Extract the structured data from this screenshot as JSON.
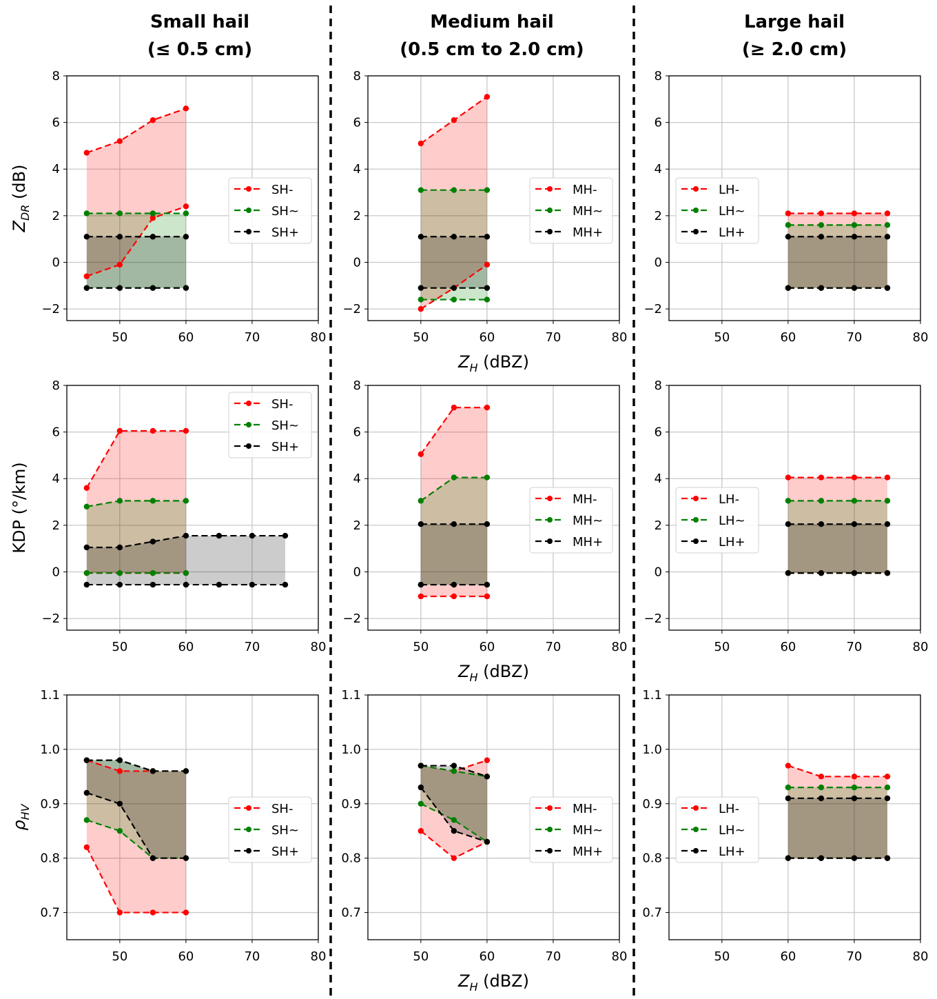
{
  "column_titles": [
    {
      "line1": "Small hail",
      "line2": "(≤ 0.5 cm)"
    },
    {
      "line1": "Medium hail",
      "line2": "(0.5 cm to 2.0 cm)"
    },
    {
      "line1": "Large hail",
      "line2": "(≥ 2.0 cm)"
    }
  ],
  "colors": {
    "minus": "#ff0000",
    "tilde": "#008000",
    "plus": "#000000",
    "fill_minus": "rgba(255,0,0,0.2)",
    "fill_tilde": "rgba(0,128,0,0.2)",
    "fill_plus": "rgba(0,0,0,0.2)"
  },
  "chart_data": {
    "type": "line",
    "grid": true,
    "xlim": [
      42,
      80
    ],
    "xticks": [
      50,
      60,
      70,
      80
    ],
    "xlabel": {
      "main": "Z",
      "sub": "H",
      "unit": " (dBZ)"
    },
    "rows": [
      {
        "ylabel": {
          "main": "Z",
          "sub": "DR",
          "unit": " (dB)"
        },
        "ylim": [
          -2.5,
          8
        ],
        "yticks": [
          -2,
          0,
          2,
          4,
          6,
          8
        ],
        "ytick_labels": [
          "−2",
          "0",
          "2",
          "4",
          "6",
          "8"
        ]
      },
      {
        "ylabel": {
          "main": "KDP (°/km)",
          "sub": "",
          "unit": ""
        },
        "ylim": [
          -2.5,
          8
        ],
        "yticks": [
          -2,
          0,
          2,
          4,
          6,
          8
        ],
        "ytick_labels": [
          "−2",
          "0",
          "2",
          "4",
          "6",
          "8"
        ]
      },
      {
        "ylabel": {
          "main": "ρ",
          "sub": "HV",
          "unit": ""
        },
        "ylim": [
          0.65,
          1.1
        ],
        "yticks": [
          0.7,
          0.8,
          0.9,
          1.0,
          1.1
        ],
        "ytick_labels": [
          "0.7",
          "0.8",
          "0.9",
          "1.0",
          "1.1"
        ]
      }
    ],
    "panels": [
      {
        "row": 0,
        "col": 0,
        "legend": "center-right",
        "series": [
          {
            "name": "SH-",
            "key": "minus",
            "x": [
              45,
              50,
              55,
              60
            ],
            "upper": [
              4.7,
              5.2,
              6.1,
              6.6
            ],
            "lower": [
              -0.6,
              -0.1,
              1.9,
              2.4
            ]
          },
          {
            "name": "SH~",
            "key": "tilde",
            "x": [
              45,
              50,
              55,
              60
            ],
            "upper": [
              2.1,
              2.1,
              2.1,
              2.1
            ],
            "lower": [
              -1.1,
              -1.1,
              -1.1,
              -1.1
            ]
          },
          {
            "name": "SH+",
            "key": "plus",
            "x": [
              45,
              50,
              55,
              60
            ],
            "upper": [
              1.1,
              1.1,
              1.1,
              1.1
            ],
            "lower": [
              -1.1,
              -1.1,
              -1.1,
              -1.1
            ]
          }
        ]
      },
      {
        "row": 0,
        "col": 1,
        "legend": "center-right",
        "series": [
          {
            "name": "MH-",
            "key": "minus",
            "x": [
              50,
              55,
              60
            ],
            "upper": [
              5.1,
              6.1,
              7.1
            ],
            "lower": [
              -2.0,
              -1.1,
              -0.1
            ]
          },
          {
            "name": "MH~",
            "key": "tilde",
            "x": [
              50,
              55,
              60
            ],
            "upper": [
              3.1,
              3.1,
              3.1
            ],
            "lower": [
              -1.6,
              -1.6,
              -1.6
            ]
          },
          {
            "name": "MH+",
            "key": "plus",
            "x": [
              50,
              55,
              60
            ],
            "upper": [
              1.1,
              1.1,
              1.1
            ],
            "lower": [
              -1.1,
              -1.1,
              -1.1
            ]
          }
        ]
      },
      {
        "row": 0,
        "col": 2,
        "legend": "center-left",
        "series": [
          {
            "name": "LH-",
            "key": "minus",
            "x": [
              60,
              65,
              70,
              75
            ],
            "upper": [
              2.1,
              2.1,
              2.1,
              2.1
            ],
            "lower": [
              -1.1,
              -1.1,
              -1.1,
              -1.1
            ]
          },
          {
            "name": "LH~",
            "key": "tilde",
            "x": [
              60,
              65,
              70,
              75
            ],
            "upper": [
              1.6,
              1.6,
              1.6,
              1.6
            ],
            "lower": [
              -1.1,
              -1.1,
              -1.1,
              -1.1
            ]
          },
          {
            "name": "LH+",
            "key": "plus",
            "x": [
              60,
              65,
              70,
              75
            ],
            "upper": [
              1.1,
              1.1,
              1.1,
              1.1
            ],
            "lower": [
              -1.1,
              -1.1,
              -1.1,
              -1.1
            ]
          }
        ]
      },
      {
        "row": 1,
        "col": 0,
        "legend": "upper-right",
        "series": [
          {
            "name": "SH-",
            "key": "minus",
            "x": [
              45,
              50,
              55,
              60
            ],
            "upper": [
              3.6,
              6.05,
              6.05,
              6.05
            ],
            "lower": [
              -0.05,
              -0.05,
              -0.05,
              -0.05
            ]
          },
          {
            "name": "SH~",
            "key": "tilde",
            "x": [
              45,
              50,
              55,
              60
            ],
            "upper": [
              2.8,
              3.05,
              3.05,
              3.05
            ],
            "lower": [
              -0.05,
              -0.05,
              -0.05,
              -0.05
            ]
          },
          {
            "name": "SH+",
            "key": "plus",
            "x": [
              45,
              50,
              55,
              60,
              65,
              70,
              75
            ],
            "upper": [
              1.05,
              1.05,
              1.3,
              1.55,
              1.55,
              1.55,
              1.55
            ],
            "lower": [
              -0.55,
              -0.55,
              -0.55,
              -0.55,
              -0.55,
              -0.55,
              -0.55
            ]
          }
        ]
      },
      {
        "row": 1,
        "col": 1,
        "legend": "center-right",
        "series": [
          {
            "name": "MH-",
            "key": "minus",
            "x": [
              50,
              55,
              60
            ],
            "upper": [
              5.05,
              7.05,
              7.05
            ],
            "lower": [
              -1.05,
              -1.05,
              -1.05
            ]
          },
          {
            "name": "MH~",
            "key": "tilde",
            "x": [
              50,
              55,
              60
            ],
            "upper": [
              3.05,
              4.05,
              4.05
            ],
            "lower": [
              -0.55,
              -0.55,
              -0.55
            ]
          },
          {
            "name": "MH+",
            "key": "plus",
            "x": [
              50,
              55,
              60
            ],
            "upper": [
              2.05,
              2.05,
              2.05
            ],
            "lower": [
              -0.55,
              -0.55,
              -0.55
            ]
          }
        ]
      },
      {
        "row": 1,
        "col": 2,
        "legend": "center-left",
        "series": [
          {
            "name": "LH-",
            "key": "minus",
            "x": [
              60,
              65,
              70,
              75
            ],
            "upper": [
              4.05,
              4.05,
              4.05,
              4.05
            ],
            "lower": [
              -0.05,
              -0.05,
              -0.05,
              -0.05
            ]
          },
          {
            "name": "LH~",
            "key": "tilde",
            "x": [
              60,
              65,
              70,
              75
            ],
            "upper": [
              3.05,
              3.05,
              3.05,
              3.05
            ],
            "lower": [
              -0.05,
              -0.05,
              -0.05,
              -0.05
            ]
          },
          {
            "name": "LH+",
            "key": "plus",
            "x": [
              60,
              65,
              70,
              75
            ],
            "upper": [
              2.05,
              2.05,
              2.05,
              2.05
            ],
            "lower": [
              -0.05,
              -0.05,
              -0.05,
              -0.05
            ]
          }
        ]
      },
      {
        "row": 2,
        "col": 0,
        "legend": "center-right",
        "series": [
          {
            "name": "SH-",
            "key": "minus",
            "x": [
              45,
              50,
              55,
              60
            ],
            "upper": [
              0.98,
              0.96,
              0.96,
              0.96
            ],
            "lower": [
              0.82,
              0.7,
              0.7,
              0.7
            ]
          },
          {
            "name": "SH~",
            "key": "tilde",
            "x": [
              45,
              50,
              55,
              60
            ],
            "upper": [
              0.98,
              0.98,
              0.96,
              0.96
            ],
            "lower": [
              0.87,
              0.85,
              0.8,
              0.8
            ]
          },
          {
            "name": "SH+",
            "key": "plus",
            "x": [
              45,
              50,
              55,
              60
            ],
            "upper": [
              0.98,
              0.98,
              0.96,
              0.96
            ],
            "lower": [
              0.92,
              0.9,
              0.8,
              0.8
            ]
          }
        ]
      },
      {
        "row": 2,
        "col": 1,
        "legend": "center-right",
        "series": [
          {
            "name": "MH-",
            "key": "minus",
            "x": [
              50,
              55,
              60
            ],
            "upper": [
              0.97,
              0.96,
              0.98
            ],
            "lower": [
              0.85,
              0.8,
              0.83
            ]
          },
          {
            "name": "MH~",
            "key": "tilde",
            "x": [
              50,
              55,
              60
            ],
            "upper": [
              0.97,
              0.96,
              0.95
            ],
            "lower": [
              0.9,
              0.87,
              0.83
            ]
          },
          {
            "name": "MH+",
            "key": "plus",
            "x": [
              50,
              55,
              60
            ],
            "upper": [
              0.97,
              0.97,
              0.95
            ],
            "lower": [
              0.93,
              0.85,
              0.83
            ]
          }
        ]
      },
      {
        "row": 2,
        "col": 2,
        "legend": "center-left",
        "series": [
          {
            "name": "LH-",
            "key": "minus",
            "x": [
              60,
              65,
              70,
              75
            ],
            "upper": [
              0.97,
              0.95,
              0.95,
              0.95
            ],
            "lower": [
              0.8,
              0.8,
              0.8,
              0.8
            ]
          },
          {
            "name": "LH~",
            "key": "tilde",
            "x": [
              60,
              65,
              70,
              75
            ],
            "upper": [
              0.93,
              0.93,
              0.93,
              0.93
            ],
            "lower": [
              0.8,
              0.8,
              0.8,
              0.8
            ]
          },
          {
            "name": "LH+",
            "key": "plus",
            "x": [
              60,
              65,
              70,
              75
            ],
            "upper": [
              0.91,
              0.91,
              0.91,
              0.91
            ],
            "lower": [
              0.8,
              0.8,
              0.8,
              0.8
            ]
          }
        ]
      }
    ]
  }
}
